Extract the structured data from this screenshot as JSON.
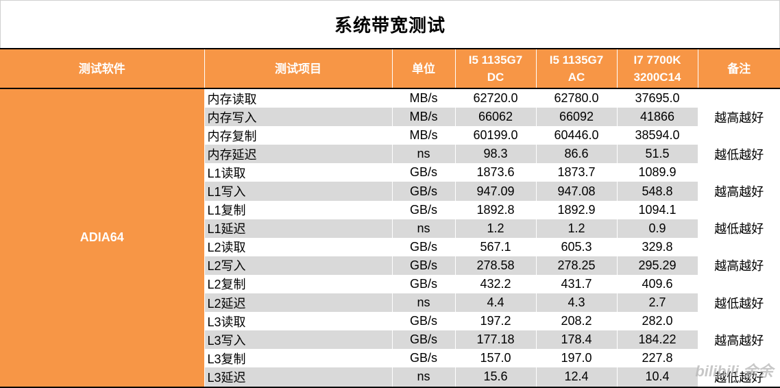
{
  "title": "系统带宽测试",
  "headers": [
    "测试软件",
    "测试项目",
    "单位",
    "I5 1135G7 DC",
    "I5 1135G7 AC",
    "I7 7700K 3200C14",
    "备注"
  ],
  "header_lines": {
    "col3": [
      "I5 1135G7",
      "DC"
    ],
    "col4": [
      "I5 1135G7",
      "AC"
    ],
    "col5": [
      "I7 7700K",
      "3200C14"
    ]
  },
  "software": "ADIA64",
  "rows": [
    {
      "item": "内存读取",
      "unit": "MB/s",
      "dc": "62720.0",
      "ac": "62780.0",
      "i7": "37695.0"
    },
    {
      "item": "内存写入",
      "unit": "MB/s",
      "dc": "66062",
      "ac": "66092",
      "i7": "41866"
    },
    {
      "item": "内存复制",
      "unit": "MB/s",
      "dc": "60199.0",
      "ac": "60446.0",
      "i7": "38594.0"
    },
    {
      "item": "内存延迟",
      "unit": "ns",
      "dc": "98.3",
      "ac": "86.6",
      "i7": "51.5"
    },
    {
      "item": "L1读取",
      "unit": "GB/s",
      "dc": "1873.6",
      "ac": "1873.7",
      "i7": "1089.9"
    },
    {
      "item": "L1写入",
      "unit": "GB/s",
      "dc": "947.09",
      "ac": "947.08",
      "i7": "548.8"
    },
    {
      "item": "L1复制",
      "unit": "GB/s",
      "dc": "1892.8",
      "ac": "1892.9",
      "i7": "1094.1"
    },
    {
      "item": "L1延迟",
      "unit": "ns",
      "dc": "1.2",
      "ac": "1.2",
      "i7": "0.9"
    },
    {
      "item": "L2读取",
      "unit": "GB/s",
      "dc": "567.1",
      "ac": "605.3",
      "i7": "329.8"
    },
    {
      "item": "L2写入",
      "unit": "GB/s",
      "dc": "278.58",
      "ac": "278.25",
      "i7": "295.29"
    },
    {
      "item": "L2复制",
      "unit": "GB/s",
      "dc": "432.2",
      "ac": "431.7",
      "i7": "409.6"
    },
    {
      "item": "L2延迟",
      "unit": "ns",
      "dc": "4.4",
      "ac": "4.3",
      "i7": "2.7"
    },
    {
      "item": "L3读取",
      "unit": "GB/s",
      "dc": "197.2",
      "ac": "208.2",
      "i7": "282.0"
    },
    {
      "item": "L3写入",
      "unit": "GB/s",
      "dc": "177.18",
      "ac": "178.4",
      "i7": "184.22"
    },
    {
      "item": "L3复制",
      "unit": "GB/s",
      "dc": "157.0",
      "ac": "197.0",
      "i7": "227.8"
    },
    {
      "item": "L3延迟",
      "unit": "ns",
      "dc": "15.6",
      "ac": "12.4",
      "i7": "10.4"
    }
  ],
  "notes": [
    {
      "text": "越高越好",
      "start": 0,
      "span": 3
    },
    {
      "text": "越低越好",
      "start": 3,
      "span": 1
    },
    {
      "text": "越高越好",
      "start": 4,
      "span": 3
    },
    {
      "text": "越低越好",
      "start": 7,
      "span": 1
    },
    {
      "text": "越高越好",
      "start": 8,
      "span": 3
    },
    {
      "text": "越低越好",
      "start": 11,
      "span": 1
    },
    {
      "text": "越高越好",
      "start": 12,
      "span": 3
    },
    {
      "text": "越低越好",
      "start": 15,
      "span": 1
    }
  ],
  "watermark": "bilibili 余余"
}
